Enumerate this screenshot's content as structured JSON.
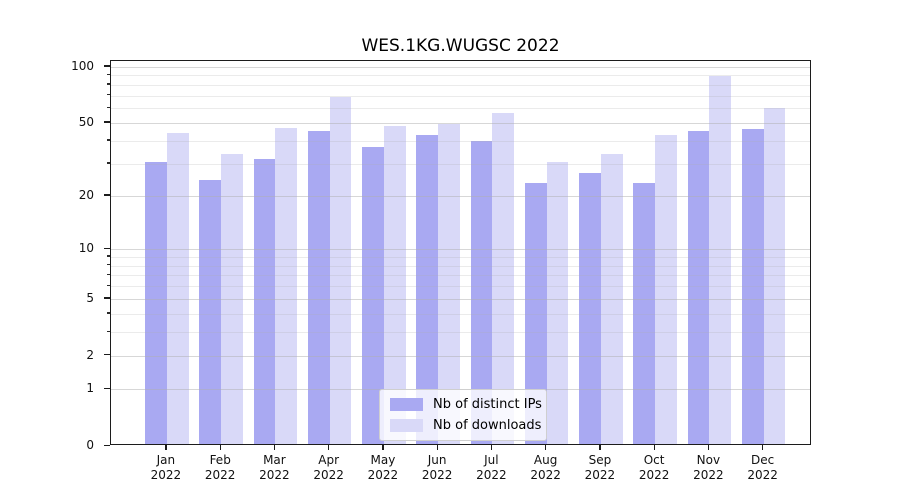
{
  "chart_data": {
    "type": "bar",
    "title": "WES.1KG.WUGSC 2022",
    "categories": [
      "Jan 2022",
      "Feb 2022",
      "Mar 2022",
      "Apr 2022",
      "May 2022",
      "Jun 2022",
      "Jul 2022",
      "Aug 2022",
      "Sep 2022",
      "Oct 2022",
      "Nov 2022",
      "Dec 2022"
    ],
    "series": [
      {
        "name": "Nb of distinct IPs",
        "color": "#a9a9f2",
        "values": [
          30,
          24,
          31,
          44,
          36,
          42,
          39,
          23,
          26,
          23,
          44,
          45
        ]
      },
      {
        "name": "Nb of downloads",
        "color": "#d9d9f8",
        "values": [
          43,
          33,
          46,
          67,
          47,
          48,
          55,
          30,
          33,
          42,
          87,
          59
        ]
      }
    ],
    "xlabel": "",
    "ylabel": "",
    "y_scale": "log1p",
    "y_ticks": [
      0,
      1,
      2,
      5,
      10,
      20,
      50,
      100
    ],
    "y_minor_ticks": [
      3,
      4,
      6,
      7,
      8,
      9,
      30,
      40,
      60,
      70,
      80,
      90
    ],
    "ylim": [
      0,
      107
    ],
    "grid": "horizontal major+minor, drawn over bars",
    "legend_position": "lower-center",
    "background": "#ffffff",
    "spine_color": "#1c1c1c"
  }
}
